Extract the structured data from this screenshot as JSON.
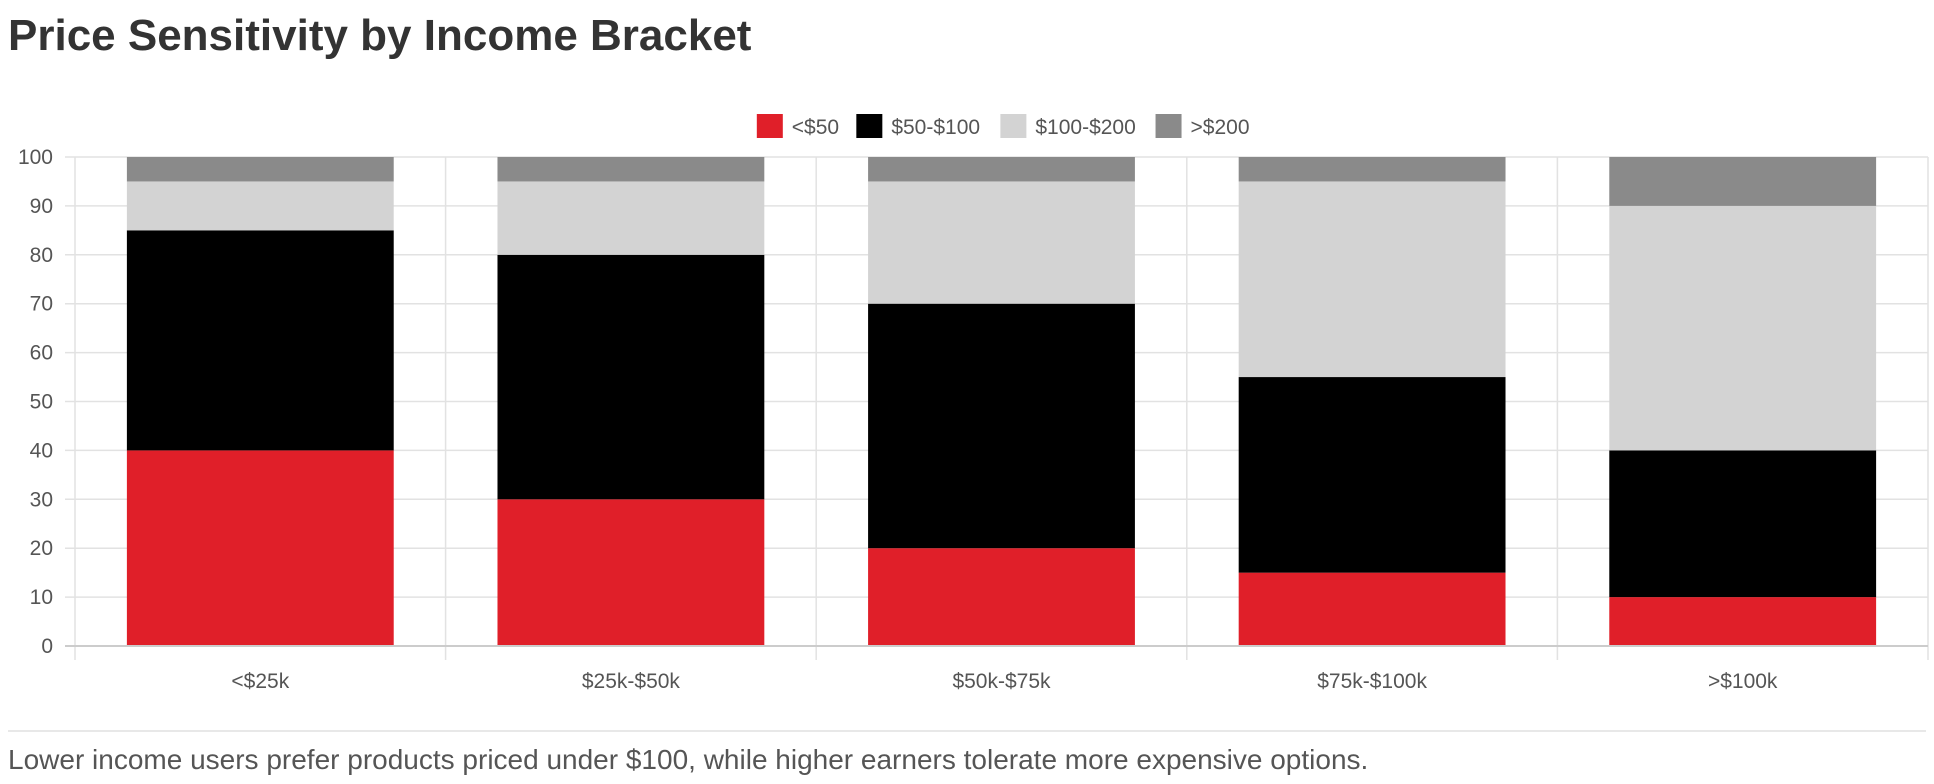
{
  "page": {
    "title": "Price Sensitivity by Income Bracket",
    "caption": "Lower income users prefer products priced under $100, while higher earners tolerate more expensive options."
  },
  "chart_data": {
    "type": "bar",
    "stacked": true,
    "categories": [
      "<$25k",
      "$25k-$50k",
      "$50k-$75k",
      "$75k-$100k",
      ">$100k"
    ],
    "series": [
      {
        "name": "<$50",
        "color": "#e01f29",
        "values": [
          40,
          30,
          20,
          15,
          10
        ]
      },
      {
        "name": "$50-$100",
        "color": "#000000",
        "values": [
          45,
          50,
          50,
          40,
          30
        ]
      },
      {
        "name": "$100-$200",
        "color": "#d3d3d3",
        "values": [
          10,
          15,
          25,
          40,
          50
        ]
      },
      {
        "name": ">$200",
        "color": "#8a8a8a",
        "values": [
          5,
          5,
          5,
          5,
          10
        ]
      }
    ],
    "ylim": [
      0,
      100
    ],
    "y_ticks": [
      0,
      10,
      20,
      30,
      40,
      50,
      60,
      70,
      80,
      90,
      100
    ],
    "grid": true,
    "legend_position": "top-center"
  }
}
